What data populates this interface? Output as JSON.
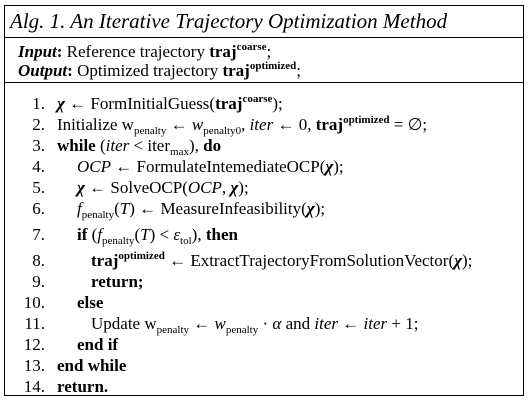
{
  "algorithm": {
    "title": "Alg. 1. An Iterative Trajectory Optimization Method",
    "input_label": "Input",
    "input_text": " Reference trajectory ",
    "output_label": "Output",
    "output_text": " Optimized trajectory ",
    "traj": "traj",
    "coarse": "coarse",
    "optimized": "optimized",
    "lines": [
      {
        "n": "1."
      },
      {
        "n": "2."
      },
      {
        "n": "3."
      },
      {
        "n": "4."
      },
      {
        "n": "5."
      },
      {
        "n": "6."
      },
      {
        "n": "7."
      },
      {
        "n": "8."
      },
      {
        "n": "9."
      },
      {
        "n": "10."
      },
      {
        "n": "11."
      },
      {
        "n": "12."
      },
      {
        "n": "13."
      },
      {
        "n": "14."
      }
    ],
    "fn_init": "FormInitialGuess",
    "kw_initialize": "Initialize",
    "w_penalty": "w",
    "sub_penalty": "penalty",
    "sub_penalty0": "penalty0",
    "iter": "iter",
    "zero": "0",
    "emptyset": "∅",
    "kw_while": "while",
    "iter_max": "iter",
    "sub_max": "max",
    "kw_do": "do",
    "ocp": "OCP",
    "fn_formulate": "FormulateIntemediateOCP",
    "fn_solve": "SolveOCP",
    "f_label": "f",
    "T": "T",
    "fn_measure": "MeasureInfeasibility",
    "kw_if": "if",
    "eps": "ε",
    "sub_tol": "tol",
    "kw_then": "then",
    "fn_extract": "ExtractTrajectoryFromSolutionVector",
    "kw_return": "return",
    "kw_else": "else",
    "kw_update": "Update",
    "alpha": "α",
    "kw_and": "and",
    "one": "1",
    "kw_endif": "end if",
    "kw_endwhile": "end while",
    "kw_return_final": "return."
  }
}
